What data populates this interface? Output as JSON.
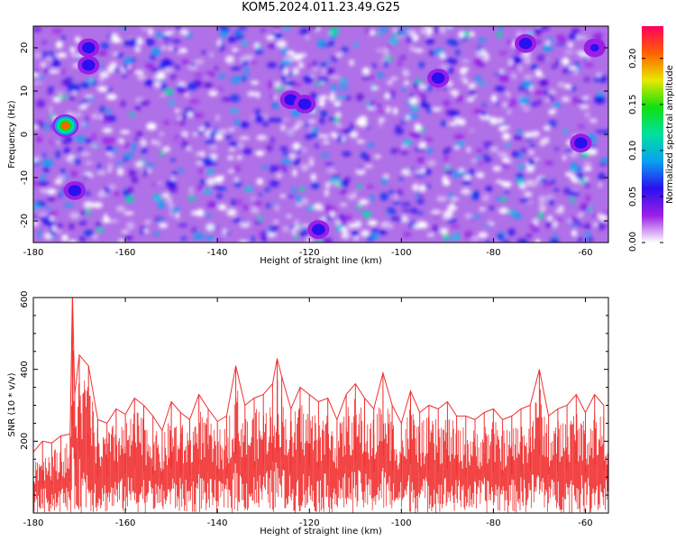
{
  "title": "KOM5.2024.011.23.49.G25",
  "chart_data": [
    {
      "type": "heatmap",
      "xlabel": "Height of straight line (km)",
      "ylabel": "Frequency (Hz)",
      "xlim": [
        -180,
        -55
      ],
      "ylim": [
        -25,
        25
      ],
      "xticks": [
        -180,
        -160,
        -140,
        -120,
        -100,
        -80,
        -60
      ],
      "yticks": [
        -20,
        -10,
        0,
        10,
        20
      ],
      "colorbar": {
        "label": "Normalized spectral amplitude",
        "range": [
          0,
          0.235
        ],
        "ticks": [
          "0.00",
          "0.05",
          "0.10",
          "0.15",
          "0.20"
        ],
        "colors": [
          "#ffffff",
          "#9a1fe6",
          "#2a10ee",
          "#0aa0f0",
          "#00e0a0",
          "#10e010",
          "#e8e800",
          "#ff6000",
          "#ff0060"
        ]
      },
      "peaks": [
        {
          "x": -173,
          "y": 2,
          "amplitude": 0.2
        },
        {
          "x": -171,
          "y": -13,
          "amplitude": 0.07
        },
        {
          "x": -168,
          "y": 16,
          "amplitude": 0.06
        },
        {
          "x": -168,
          "y": 20,
          "amplitude": 0.06
        },
        {
          "x": -124,
          "y": 8,
          "amplitude": 0.07
        },
        {
          "x": -121,
          "y": 7,
          "amplitude": 0.07
        },
        {
          "x": -92,
          "y": 13,
          "amplitude": 0.07
        },
        {
          "x": -73,
          "y": 21,
          "amplitude": 0.06
        },
        {
          "x": -61,
          "y": -2,
          "amplitude": 0.06
        },
        {
          "x": -118,
          "y": -22,
          "amplitude": 0.06
        },
        {
          "x": -58,
          "y": 20,
          "amplitude": 0.05
        }
      ]
    },
    {
      "type": "line",
      "xlabel": "Height of straight line (km)",
      "ylabel": "SNR (10 * v/v)",
      "xlim": [
        -180,
        -55
      ],
      "ylim": [
        0,
        600
      ],
      "xticks": [
        -180,
        -160,
        -140,
        -120,
        -100,
        -80,
        -60
      ],
      "yticks": [
        200,
        400,
        600
      ],
      "color": "#f03030",
      "series": [
        {
          "x": [
            -180,
            -178,
            -176,
            -174,
            -172,
            -171.5,
            -171,
            -170,
            -168,
            -166,
            -164,
            -162,
            -160,
            -158,
            -156,
            -154,
            -152,
            -150,
            -148,
            -146,
            -144,
            -142,
            -140,
            -138,
            -136,
            -134,
            -132,
            -130,
            -128,
            -127,
            -126,
            -124,
            -122,
            -120,
            -118,
            -116,
            -114,
            -112,
            -110,
            -108,
            -106,
            -104,
            -102,
            -100,
            -98,
            -96,
            -94,
            -92,
            -90,
            -88,
            -86,
            -84,
            -82,
            -80,
            -78,
            -76,
            -74,
            -72,
            -70,
            -68,
            -66,
            -64,
            -62,
            -60,
            -58,
            -56
          ],
          "values": [
            170,
            200,
            195,
            215,
            220,
            610,
            330,
            440,
            410,
            260,
            250,
            290,
            275,
            320,
            300,
            270,
            230,
            310,
            280,
            260,
            330,
            290,
            255,
            270,
            410,
            300,
            320,
            330,
            360,
            430,
            380,
            290,
            350,
            330,
            310,
            320,
            260,
            330,
            360,
            320,
            290,
            390,
            300,
            250,
            340,
            280,
            300,
            290,
            310,
            270,
            270,
            260,
            280,
            290,
            260,
            270,
            290,
            300,
            400,
            270,
            290,
            300,
            330,
            280,
            330,
            300
          ]
        }
      ]
    }
  ]
}
